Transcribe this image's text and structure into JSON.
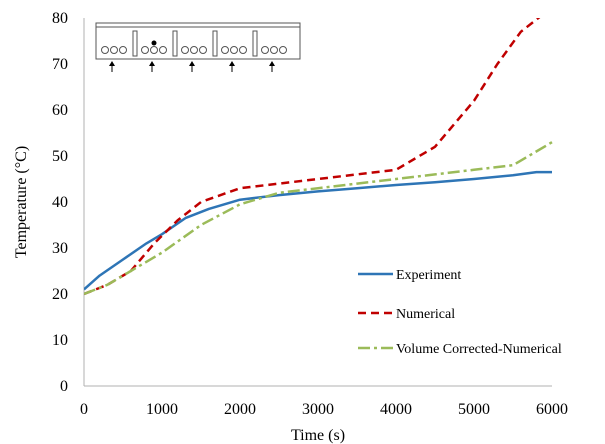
{
  "chart_data": {
    "type": "line",
    "xlabel": "Time (s)",
    "ylabel": "Temperature (°C)",
    "xlim": [
      0,
      6000
    ],
    "ylim": [
      0,
      80
    ],
    "x_ticks": [
      "0",
      "1000",
      "2000",
      "3000",
      "4000",
      "5000",
      "6000"
    ],
    "y_ticks": [
      "0",
      "10",
      "20",
      "30",
      "40",
      "50",
      "60",
      "70",
      "80"
    ],
    "grid": false,
    "legend_position": "lower-right",
    "series": [
      {
        "name": "Experiment",
        "color": "#2e75b6",
        "style": "solid",
        "x": [
          0,
          200,
          500,
          800,
          1000,
          1300,
          1600,
          2000,
          2500,
          3000,
          3500,
          4000,
          4500,
          5000,
          5500,
          5800,
          6000
        ],
        "y": [
          21,
          24,
          27.5,
          31,
          33,
          36.5,
          38.5,
          40.5,
          41.5,
          42.3,
          43,
          43.7,
          44.3,
          45,
          45.8,
          46.5,
          46.5
        ]
      },
      {
        "name": "Numerical",
        "color": "#c00000",
        "style": "dashed",
        "x": [
          0,
          300,
          600,
          900,
          1200,
          1500,
          2000,
          2500,
          3000,
          3500,
          4000,
          4500,
          5000,
          5300,
          5600,
          5900
        ],
        "y": [
          20,
          22,
          25,
          31,
          36,
          40,
          43,
          44,
          45,
          46,
          47,
          52,
          62,
          70,
          77,
          81
        ]
      },
      {
        "name": "Volume Corrected-Numerical",
        "color": "#9bbb59",
        "style": "dashdot",
        "x": [
          0,
          300,
          600,
          1000,
          1500,
          2000,
          2500,
          3000,
          3500,
          4000,
          4500,
          5000,
          5500,
          5700,
          6000
        ],
        "y": [
          20,
          22,
          25,
          29,
          35,
          39.5,
          42,
          43,
          44,
          45,
          46,
          47,
          48,
          50,
          53
        ]
      }
    ],
    "inset": {
      "description_marks": [
        "circles",
        "arrows",
        "dot"
      ],
      "arrow_count": 5
    }
  }
}
